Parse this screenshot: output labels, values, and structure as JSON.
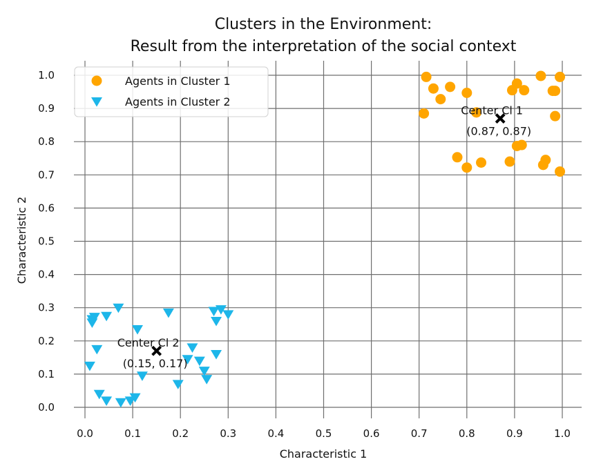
{
  "chart_data": {
    "type": "scatter",
    "title": "Clusters in the Environment:",
    "subtitle": "Result from the interpretation of the social context",
    "xlabel": "Characteristic 1",
    "ylabel": "Characteristic 2",
    "xlim": [
      -0.01,
      1.04
    ],
    "ylim": [
      -0.02,
      1.04
    ],
    "x_ticks": [
      "0.0",
      "0.1",
      "0.2",
      "0.3",
      "0.4",
      "0.5",
      "0.6",
      "0.7",
      "0.8",
      "0.9",
      "1.0"
    ],
    "y_ticks": [
      "0.0",
      "0.1",
      "0.2",
      "0.3",
      "0.4",
      "0.5",
      "0.6",
      "0.7",
      "0.8",
      "0.9",
      "1.0"
    ],
    "grid": true,
    "legend_position": "top-left",
    "series": [
      {
        "name": "Agents in Cluster 1",
        "marker": "circle",
        "color": "#FFA500",
        "points": [
          [
            0.715,
            0.995
          ],
          [
            0.73,
            0.96
          ],
          [
            0.745,
            0.928
          ],
          [
            0.765,
            0.965
          ],
          [
            0.71,
            0.885
          ],
          [
            0.8,
            0.947
          ],
          [
            0.82,
            0.888
          ],
          [
            0.78,
            0.753
          ],
          [
            0.8,
            0.722
          ],
          [
            0.83,
            0.737
          ],
          [
            0.89,
            0.74
          ],
          [
            0.895,
            0.955
          ],
          [
            0.905,
            0.975
          ],
          [
            0.92,
            0.955
          ],
          [
            0.955,
            0.998
          ],
          [
            0.98,
            0.953
          ],
          [
            0.995,
            0.995
          ],
          [
            0.985,
            0.953
          ],
          [
            0.985,
            0.877
          ],
          [
            0.905,
            0.787
          ],
          [
            0.915,
            0.79
          ],
          [
            0.96,
            0.73
          ],
          [
            0.965,
            0.745
          ],
          [
            0.995,
            0.71
          ]
        ]
      },
      {
        "name": "Agents in Cluster 2",
        "marker": "triangle-down",
        "color": "#1DB6E9",
        "points": [
          [
            0.015,
            0.265
          ],
          [
            0.015,
            0.255
          ],
          [
            0.02,
            0.272
          ],
          [
            0.045,
            0.275
          ],
          [
            0.07,
            0.3
          ],
          [
            0.11,
            0.235
          ],
          [
            0.175,
            0.285
          ],
          [
            0.025,
            0.175
          ],
          [
            0.01,
            0.125
          ],
          [
            0.03,
            0.04
          ],
          [
            0.045,
            0.02
          ],
          [
            0.075,
            0.015
          ],
          [
            0.095,
            0.02
          ],
          [
            0.105,
            0.03
          ],
          [
            0.12,
            0.095
          ],
          [
            0.195,
            0.07
          ],
          [
            0.215,
            0.145
          ],
          [
            0.225,
            0.18
          ],
          [
            0.24,
            0.14
          ],
          [
            0.25,
            0.11
          ],
          [
            0.255,
            0.085
          ],
          [
            0.27,
            0.29
          ],
          [
            0.285,
            0.295
          ],
          [
            0.275,
            0.26
          ],
          [
            0.275,
            0.16
          ],
          [
            0.3,
            0.28
          ]
        ]
      }
    ],
    "centers": [
      {
        "label": "Center Cl 1",
        "coord_text": "(0.87, 0.87)",
        "x": 0.87,
        "y": 0.87
      },
      {
        "label": "Center Cl 2",
        "coord_text": "(0.15, 0.17)",
        "x": 0.15,
        "y": 0.17
      }
    ]
  }
}
